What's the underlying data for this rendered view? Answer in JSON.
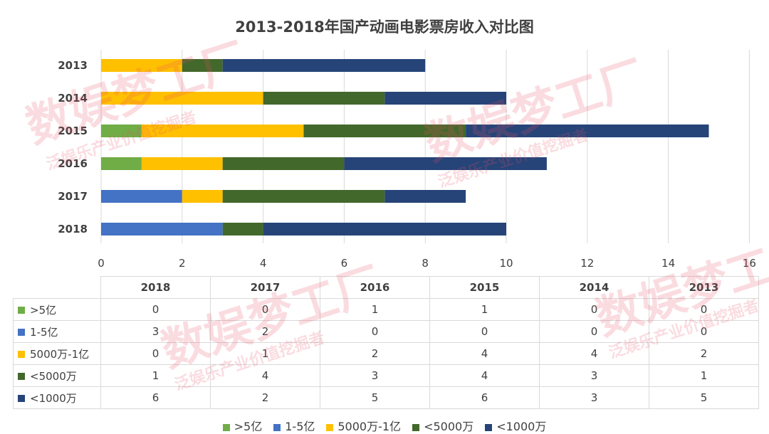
{
  "chart_data": {
    "type": "bar",
    "orientation": "horizontal",
    "stacked": true,
    "title": "2013-2018年国产动画电影票房收入对比图",
    "categories": [
      "2013",
      "2014",
      "2015",
      "2016",
      "2017",
      "2018"
    ],
    "series": [
      {
        "name": ">5亿",
        "color": "#70ad47",
        "values": [
          0,
          0,
          1,
          1,
          0,
          0
        ]
      },
      {
        "name": "1-5亿",
        "color": "#4472c4",
        "values": [
          0,
          0,
          0,
          0,
          2,
          3
        ]
      },
      {
        "name": "5000万-1亿",
        "color": "#ffc000",
        "values": [
          2,
          4,
          4,
          2,
          1,
          0
        ]
      },
      {
        "name": "<5000万",
        "color": "#43682b",
        "values": [
          1,
          3,
          4,
          3,
          4,
          1
        ]
      },
      {
        "name": "<1000万",
        "color": "#264478",
        "values": [
          5,
          3,
          6,
          5,
          2,
          6
        ]
      }
    ],
    "xlim": [
      0,
      16
    ],
    "xticks": [
      "0",
      "2",
      "4",
      "6",
      "8",
      "10",
      "12",
      "14",
      "16"
    ],
    "grid": true,
    "legend_position": "bottom"
  },
  "table": {
    "columns": [
      "2018",
      "2017",
      "2016",
      "2015",
      "2014",
      "2013"
    ]
  },
  "watermark": {
    "main": "数娱梦工厂",
    "sub": "泛娱乐产业价值挖掘者"
  }
}
